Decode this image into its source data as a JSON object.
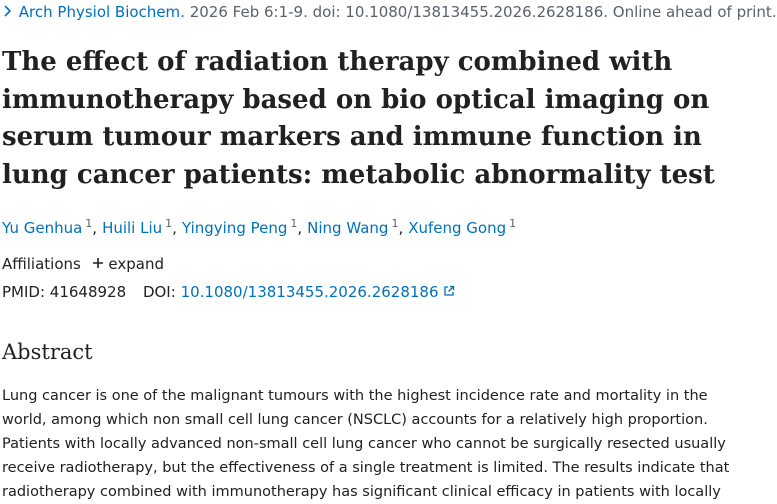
{
  "citation": {
    "journal": "Arch Physiol Biochem.",
    "details": "2026 Feb 6:1-9. doi: 10.1080/13813455.2026.2628186. Online ahead of print."
  },
  "title": "The effect of radiation therapy combined with immunotherapy based on bio optical imaging on serum tumour markers and immune function in lung cancer patients: metabolic abnormality test",
  "authors": {
    "separator": ",",
    "list": [
      {
        "name": "Yu Genhua",
        "affiliation": "1"
      },
      {
        "name": "Huili Liu",
        "affiliation": "1"
      },
      {
        "name": "Yingying Peng",
        "affiliation": "1"
      },
      {
        "name": "Ning Wang",
        "affiliation": "1"
      },
      {
        "name": "Xufeng Gong",
        "affiliation": "1"
      }
    ]
  },
  "affiliations": {
    "label": "Affiliations",
    "toggle": "expand"
  },
  "identifiers": {
    "pmid_label": "PMID:",
    "pmid": "41648928",
    "doi_label": "DOI:",
    "doi": "10.1080/13813455.2026.2628186"
  },
  "abstract": {
    "heading": "Abstract",
    "text": "Lung cancer is one of the malignant tumours with the highest incidence rate and mortality in the world, among which non small cell lung cancer (NSCLC) accounts for a relatively high proportion. Patients with locally advanced non-small cell lung cancer who cannot be surgically resected usually receive radiotherapy, but the effectiveness of a single treatment is limited. The results indicate that radiotherapy combined with immunotherapy has significant clinical efficacy in patients with locally"
  }
}
